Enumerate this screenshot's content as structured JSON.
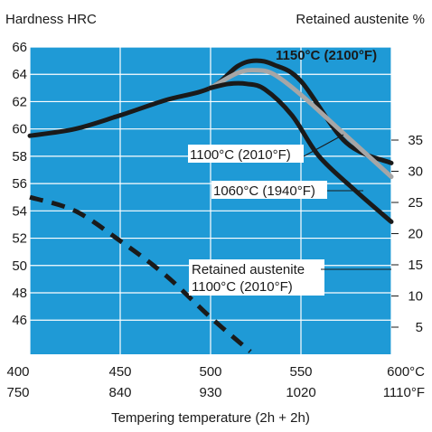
{
  "chart_data": {
    "type": "line",
    "y_left_label": "Hardness HRC",
    "y_right_label": "Retained austenite %",
    "xlabel": "Tempering temperature (2h + 2h)",
    "x_unit_c": "°C",
    "x_unit_f": "°F",
    "x_ticks_c": [
      400,
      450,
      500,
      550,
      600
    ],
    "x_ticks_f": [
      750,
      840,
      930,
      1020,
      1110
    ],
    "xlim": [
      400,
      600
    ],
    "ylim_left": [
      43.5,
      66
    ],
    "y_ticks_left": [
      46,
      48,
      50,
      52,
      54,
      56,
      58,
      60,
      62,
      64,
      66
    ],
    "y_ticks_right": [
      5,
      10,
      15,
      20,
      25,
      30,
      35
    ],
    "grid": true,
    "series": [
      {
        "name": "1150°C (2100°F)",
        "axis": "left",
        "color": "#1a1a1a",
        "style": "solid",
        "x": [
          400,
          425,
          450,
          475,
          500,
          515,
          525,
          535,
          550,
          575,
          600
        ],
        "y": [
          59.5,
          60.0,
          61.0,
          62.1,
          63.0,
          64.6,
          65.0,
          64.7,
          63.5,
          59.0,
          57.5
        ]
      },
      {
        "name": "1100°C (2010°F)",
        "axis": "left",
        "color": "#a6a6a6",
        "style": "solid",
        "x": [
          500,
          515,
          525,
          535,
          550,
          575,
          600
        ],
        "y": [
          63.0,
          64.1,
          64.3,
          64.0,
          62.5,
          59.5,
          56.5
        ]
      },
      {
        "name": "1060°C (1940°F)",
        "axis": "left",
        "color": "#1a1a1a",
        "style": "solid",
        "x": [
          500,
          510,
          520,
          530,
          545,
          560,
          580,
          600
        ],
        "y": [
          63.0,
          63.3,
          63.3,
          62.9,
          61.0,
          58.0,
          55.5,
          53.2
        ]
      },
      {
        "name": "Retained austenite 1100°C (2010°F)",
        "axis": "right",
        "color": "#1a1a1a",
        "style": "dashed",
        "x": [
          400,
          425,
          450,
          475,
          500,
          522
        ],
        "y": [
          55.0,
          54.0,
          51.8,
          49.3,
          46.2,
          43.7
        ]
      }
    ],
    "annotations": [
      {
        "text": "1150°C (2100°F)",
        "bold": true
      },
      {
        "text": "1100°C (2010°F)"
      },
      {
        "text": "1060°C (1940°F)"
      },
      {
        "text": "Retained austenite"
      },
      {
        "text": "1100°C (2010°F)"
      }
    ]
  }
}
